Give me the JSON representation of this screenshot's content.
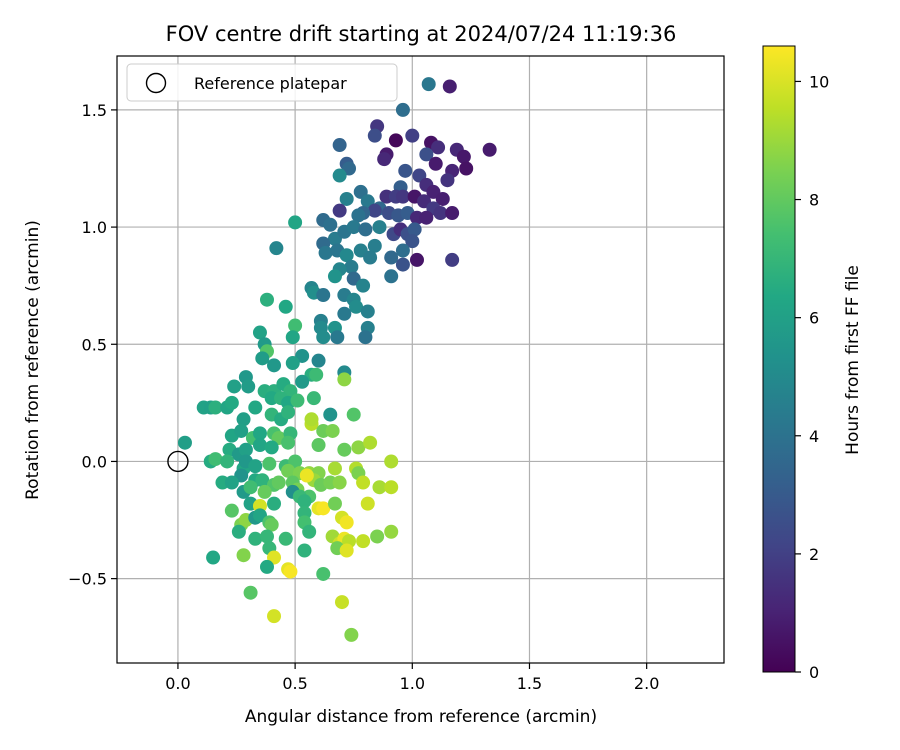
{
  "chart_data": {
    "type": "scatter",
    "title": "FOV centre drift starting at 2024/07/24 11:19:36",
    "xlabel": "Angular distance from reference (arcmin)",
    "ylabel": "Rotation from reference (arcmin)",
    "xlim": [
      -0.26,
      2.33
    ],
    "ylim": [
      -0.86,
      1.73
    ],
    "xticks": [
      0.0,
      0.5,
      1.0,
      1.5,
      2.0
    ],
    "xtick_labels": [
      "0.0",
      "0.5",
      "1.0",
      "1.5",
      "2.0"
    ],
    "yticks": [
      -0.5,
      0.0,
      0.5,
      1.0,
      1.5
    ],
    "ytick_labels": [
      "−0.5",
      "0.0",
      "0.5",
      "1.0",
      "1.5"
    ],
    "grid": true,
    "legend": {
      "position": "top-left",
      "entries": [
        "Reference platepar"
      ]
    },
    "reference_point": {
      "x": 0.0,
      "y": 0.0
    },
    "colorbar": {
      "label": "Hours from first FF file",
      "range": [
        0,
        10.6
      ],
      "ticks": [
        0,
        2,
        4,
        6,
        8,
        10
      ],
      "tick_labels": [
        "0",
        "2",
        "4",
        "6",
        "8",
        "10"
      ],
      "colormap": "viridis"
    },
    "points": [
      [
        1.07,
        1.61,
        4.2
      ],
      [
        1.16,
        1.6,
        0.9
      ],
      [
        0.96,
        1.5,
        3.8
      ],
      [
        1.33,
        1.33,
        0.8
      ],
      [
        0.85,
        1.43,
        1.7
      ],
      [
        0.84,
        1.39,
        2.5
      ],
      [
        0.93,
        1.37,
        0.2
      ],
      [
        1.0,
        1.39,
        2.0
      ],
      [
        1.08,
        1.36,
        0.5
      ],
      [
        1.11,
        1.34,
        1.4
      ],
      [
        1.19,
        1.33,
        1.2
      ],
      [
        1.22,
        1.3,
        0.7
      ],
      [
        1.23,
        1.25,
        0.5
      ],
      [
        0.69,
        1.35,
        3.4
      ],
      [
        0.89,
        1.31,
        0.8
      ],
      [
        0.88,
        1.29,
        1.2
      ],
      [
        1.06,
        1.31,
        2.6
      ],
      [
        1.1,
        1.27,
        0.8
      ],
      [
        1.17,
        1.24,
        1.1
      ],
      [
        1.03,
        1.22,
        2.2
      ],
      [
        1.15,
        1.2,
        1.6
      ],
      [
        1.06,
        1.18,
        1.4
      ],
      [
        1.09,
        1.15,
        1.0
      ],
      [
        1.13,
        1.12,
        0.9
      ],
      [
        0.72,
        1.27,
        3.1
      ],
      [
        0.73,
        1.25,
        3.6
      ],
      [
        0.69,
        1.22,
        5.0
      ],
      [
        0.97,
        1.24,
        2.8
      ],
      [
        0.95,
        1.17,
        3.2
      ],
      [
        0.89,
        1.13,
        1.5
      ],
      [
        0.93,
        1.13,
        1.9
      ],
      [
        0.96,
        1.13,
        1.7
      ],
      [
        1.01,
        1.13,
        0.6
      ],
      [
        1.05,
        1.11,
        1.3
      ],
      [
        1.09,
        1.08,
        1.8
      ],
      [
        1.12,
        1.06,
        1.6
      ],
      [
        0.78,
        1.15,
        3.9
      ],
      [
        0.72,
        1.12,
        4.6
      ],
      [
        0.81,
        1.11,
        4.3
      ],
      [
        0.86,
        1.08,
        3.6
      ],
      [
        0.84,
        1.07,
        2.2
      ],
      [
        0.79,
        1.06,
        3.5
      ],
      [
        0.77,
        1.05,
        4.0
      ],
      [
        0.69,
        1.07,
        1.8
      ],
      [
        0.9,
        1.06,
        2.5
      ],
      [
        0.94,
        1.05,
        2.9
      ],
      [
        0.98,
        1.06,
        3.1
      ],
      [
        1.02,
        1.04,
        1.2
      ],
      [
        1.06,
        1.04,
        1.0
      ],
      [
        1.17,
        1.06,
        0.8
      ],
      [
        0.5,
        1.02,
        6.2
      ],
      [
        0.62,
        1.03,
        3.7
      ],
      [
        0.65,
        1.01,
        3.9
      ],
      [
        0.67,
        0.95,
        4.4
      ],
      [
        0.71,
        0.98,
        4.1
      ],
      [
        0.75,
        1.0,
        4.3
      ],
      [
        0.8,
        0.99,
        3.8
      ],
      [
        0.86,
        1.0,
        4.6
      ],
      [
        0.92,
        0.97,
        2.3
      ],
      [
        0.95,
        0.99,
        1.4
      ],
      [
        0.98,
        0.97,
        2.6
      ],
      [
        1.01,
        0.99,
        3.0
      ],
      [
        1.0,
        0.94,
        2.7
      ],
      [
        0.96,
        0.9,
        3.8
      ],
      [
        0.42,
        0.91,
        4.8
      ],
      [
        0.62,
        0.93,
        3.7
      ],
      [
        0.63,
        0.89,
        4.2
      ],
      [
        0.68,
        0.9,
        4.1
      ],
      [
        0.72,
        0.88,
        4.9
      ],
      [
        0.78,
        0.9,
        4.6
      ],
      [
        0.84,
        0.92,
        4.5
      ],
      [
        0.91,
        0.87,
        3.6
      ],
      [
        1.02,
        0.86,
        0.6
      ],
      [
        0.96,
        0.84,
        2.7
      ],
      [
        0.74,
        0.83,
        4.4
      ],
      [
        0.69,
        0.82,
        4.8
      ],
      [
        0.67,
        0.79,
        5.4
      ],
      [
        0.75,
        0.78,
        3.6
      ],
      [
        0.79,
        0.75,
        4.7
      ],
      [
        0.82,
        0.87,
        4.4
      ],
      [
        0.91,
        0.79,
        4.0
      ],
      [
        1.17,
        0.86,
        1.9
      ],
      [
        0.57,
        0.74,
        4.8
      ],
      [
        0.58,
        0.72,
        5.2
      ],
      [
        0.62,
        0.71,
        4.1
      ],
      [
        0.71,
        0.71,
        4.4
      ],
      [
        0.38,
        0.69,
        6.7
      ],
      [
        0.46,
        0.66,
        6.3
      ],
      [
        0.75,
        0.69,
        4.8
      ],
      [
        0.76,
        0.66,
        5.1
      ],
      [
        0.81,
        0.64,
        4.6
      ],
      [
        0.71,
        0.63,
        4.3
      ],
      [
        0.61,
        0.6,
        4.6
      ],
      [
        0.61,
        0.57,
        5.0
      ],
      [
        0.5,
        0.58,
        7.3
      ],
      [
        0.67,
        0.57,
        5.4
      ],
      [
        0.81,
        0.57,
        4.6
      ],
      [
        0.8,
        0.53,
        4.0
      ],
      [
        0.35,
        0.55,
        6.1
      ],
      [
        0.37,
        0.5,
        5.7
      ],
      [
        0.38,
        0.47,
        7.7
      ],
      [
        0.49,
        0.53,
        6.2
      ],
      [
        0.62,
        0.53,
        5.1
      ],
      [
        0.68,
        0.53,
        4.3
      ],
      [
        0.53,
        0.45,
        5.4
      ],
      [
        0.49,
        0.42,
        6.0
      ],
      [
        0.36,
        0.44,
        5.8
      ],
      [
        0.41,
        0.41,
        5.6
      ],
      [
        0.6,
        0.43,
        4.8
      ],
      [
        0.57,
        0.37,
        6.6
      ],
      [
        0.59,
        0.37,
        7.2
      ],
      [
        0.71,
        0.38,
        5.0
      ],
      [
        0.71,
        0.35,
        8.8
      ],
      [
        0.29,
        0.36,
        5.6
      ],
      [
        0.24,
        0.32,
        6.0
      ],
      [
        0.3,
        0.32,
        5.8
      ],
      [
        0.37,
        0.3,
        6.6
      ],
      [
        0.41,
        0.3,
        6.7
      ],
      [
        0.45,
        0.33,
        6.5
      ],
      [
        0.48,
        0.3,
        6.9
      ],
      [
        0.53,
        0.34,
        5.7
      ],
      [
        0.4,
        0.27,
        6.4
      ],
      [
        0.44,
        0.27,
        6.8
      ],
      [
        0.47,
        0.25,
        6.3
      ],
      [
        0.51,
        0.26,
        7.2
      ],
      [
        0.58,
        0.27,
        7.1
      ],
      [
        0.11,
        0.23,
        6.1
      ],
      [
        0.14,
        0.23,
        6.0
      ],
      [
        0.16,
        0.23,
        6.7
      ],
      [
        0.21,
        0.23,
        6.2
      ],
      [
        0.23,
        0.25,
        6.4
      ],
      [
        0.28,
        0.18,
        5.9
      ],
      [
        0.33,
        0.23,
        6.3
      ],
      [
        0.4,
        0.2,
        6.9
      ],
      [
        0.44,
        0.18,
        6.5
      ],
      [
        0.47,
        0.21,
        6.8
      ],
      [
        0.57,
        0.16,
        9.5
      ],
      [
        0.57,
        0.18,
        9.3
      ],
      [
        0.65,
        0.2,
        5.4
      ],
      [
        0.75,
        0.2,
        7.7
      ],
      [
        0.62,
        0.13,
        8.2
      ],
      [
        0.66,
        0.13,
        8.5
      ],
      [
        0.23,
        0.11,
        6.2
      ],
      [
        0.27,
        0.13,
        6.0
      ],
      [
        0.32,
        0.1,
        7.4
      ],
      [
        0.35,
        0.12,
        6.3
      ],
      [
        0.41,
        0.12,
        7.5
      ],
      [
        0.43,
        0.1,
        8.0
      ],
      [
        0.48,
        0.12,
        7.0
      ],
      [
        0.47,
        0.08,
        7.5
      ],
      [
        0.6,
        0.07,
        7.9
      ],
      [
        0.03,
        0.08,
        5.9
      ],
      [
        0.22,
        0.05,
        6.5
      ],
      [
        0.26,
        0.03,
        5.7
      ],
      [
        0.29,
        0.05,
        6.0
      ],
      [
        0.35,
        0.07,
        6.2
      ],
      [
        0.4,
        0.06,
        6.4
      ],
      [
        0.71,
        0.05,
        8.1
      ],
      [
        0.77,
        0.06,
        8.8
      ],
      [
        0.82,
        0.08,
        9.3
      ],
      [
        0.14,
        0.0,
        6.5
      ],
      [
        0.16,
        0.01,
        7.3
      ],
      [
        0.21,
        0.0,
        6.9
      ],
      [
        0.28,
        -0.03,
        6.3
      ],
      [
        0.29,
        0.0,
        5.6
      ],
      [
        0.33,
        -0.02,
        6.1
      ],
      [
        0.39,
        -0.01,
        7.6
      ],
      [
        0.46,
        -0.02,
        7.2
      ],
      [
        0.5,
        0.0,
        7.6
      ],
      [
        0.47,
        -0.04,
        8.3
      ],
      [
        0.52,
        -0.05,
        8.5
      ],
      [
        0.56,
        -0.05,
        8.9
      ],
      [
        0.6,
        -0.05,
        8.6
      ],
      [
        0.67,
        -0.03,
        9.2
      ],
      [
        0.76,
        -0.03,
        9.4
      ],
      [
        0.77,
        -0.05,
        8.5
      ],
      [
        0.91,
        0.0,
        9.3
      ],
      [
        0.27,
        -0.06,
        5.4
      ],
      [
        0.33,
        -0.08,
        6.4
      ],
      [
        0.36,
        -0.08,
        6.8
      ],
      [
        0.41,
        -0.1,
        7.7
      ],
      [
        0.43,
        -0.09,
        8.0
      ],
      [
        0.49,
        -0.09,
        7.9
      ],
      [
        0.51,
        -0.12,
        8.4
      ],
      [
        0.58,
        -0.08,
        9.0
      ],
      [
        0.55,
        -0.06,
        10.3
      ],
      [
        0.56,
        -0.15,
        7.6
      ],
      [
        0.61,
        -0.1,
        8.2
      ],
      [
        0.65,
        -0.09,
        8.4
      ],
      [
        0.69,
        -0.09,
        8.7
      ],
      [
        0.79,
        -0.09,
        9.6
      ],
      [
        0.86,
        -0.11,
        9.2
      ],
      [
        0.91,
        -0.11,
        9.5
      ],
      [
        0.19,
        -0.09,
        6.5
      ],
      [
        0.23,
        -0.09,
        6.1
      ],
      [
        0.28,
        -0.13,
        5.7
      ],
      [
        0.31,
        -0.11,
        7.3
      ],
      [
        0.37,
        -0.13,
        8.1
      ],
      [
        0.49,
        -0.13,
        5.2
      ],
      [
        0.52,
        -0.15,
        7.1
      ],
      [
        0.54,
        -0.17,
        6.8
      ],
      [
        0.31,
        -0.18,
        6.1
      ],
      [
        0.35,
        -0.19,
        9.9
      ],
      [
        0.41,
        -0.18,
        6.6
      ],
      [
        0.54,
        -0.22,
        6.9
      ],
      [
        0.6,
        -0.2,
        10.2
      ],
      [
        0.62,
        -0.2,
        10.5
      ],
      [
        0.67,
        -0.18,
        8.3
      ],
      [
        0.81,
        -0.18,
        9.8
      ],
      [
        0.23,
        -0.21,
        7.8
      ],
      [
        0.27,
        -0.27,
        8.5
      ],
      [
        0.29,
        -0.25,
        8.8
      ],
      [
        0.33,
        -0.24,
        5.6
      ],
      [
        0.35,
        -0.23,
        6.2
      ],
      [
        0.39,
        -0.26,
        7.6
      ],
      [
        0.4,
        -0.27,
        8.1
      ],
      [
        0.54,
        -0.26,
        7.4
      ],
      [
        0.56,
        -0.3,
        6.9
      ],
      [
        0.7,
        -0.24,
        9.9
      ],
      [
        0.72,
        -0.26,
        10.4
      ],
      [
        0.26,
        -0.3,
        6.6
      ],
      [
        0.33,
        -0.33,
        6.8
      ],
      [
        0.38,
        -0.32,
        7.0
      ],
      [
        0.46,
        -0.33,
        7.1
      ],
      [
        0.66,
        -0.32,
        9.1
      ],
      [
        0.69,
        -0.35,
        9.8
      ],
      [
        0.71,
        -0.33,
        10.3
      ],
      [
        0.73,
        -0.34,
        9.5
      ],
      [
        0.79,
        -0.34,
        9.6
      ],
      [
        0.85,
        -0.32,
        8.5
      ],
      [
        0.91,
        -0.3,
        8.9
      ],
      [
        0.39,
        -0.37,
        7.0
      ],
      [
        0.54,
        -0.38,
        6.8
      ],
      [
        0.68,
        -0.37,
        8.3
      ],
      [
        0.72,
        -0.38,
        10.1
      ],
      [
        0.15,
        -0.41,
        6.3
      ],
      [
        0.28,
        -0.4,
        8.6
      ],
      [
        0.41,
        -0.41,
        10.1
      ],
      [
        0.38,
        -0.45,
        6.4
      ],
      [
        0.47,
        -0.46,
        10.2
      ],
      [
        0.48,
        -0.47,
        10.5
      ],
      [
        0.62,
        -0.48,
        7.5
      ],
      [
        0.31,
        -0.56,
        7.8
      ],
      [
        0.41,
        -0.66,
        9.9
      ],
      [
        0.7,
        -0.6,
        9.7
      ],
      [
        0.74,
        -0.74,
        8.6
      ]
    ]
  }
}
